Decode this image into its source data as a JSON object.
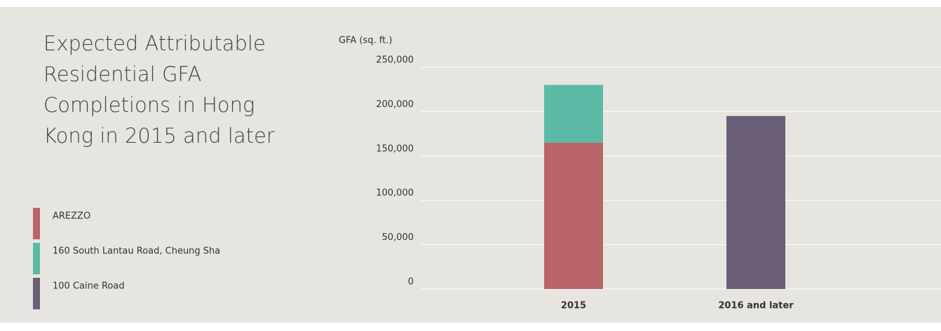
{
  "chart_data": {
    "type": "stacked_bar",
    "title": "Expected Attributable Residential GFA Completions in Hong Kong in 2015 and later",
    "y_label": "GFA (sq. ft.)",
    "categories": [
      "2015",
      "2016 and later"
    ],
    "series": [
      {
        "name": "AREZZO",
        "color": "#b9646a",
        "values": [
          165000,
          null
        ]
      },
      {
        "name": "160 South Lantau Road, Cheung Sha",
        "color": "#5bbaa6",
        "values": [
          65000,
          null
        ]
      },
      {
        "name": "100 Caine Road",
        "color": "#6b5e77",
        "values": [
          null,
          195000
        ]
      }
    ],
    "ylim": [
      0,
      250000
    ],
    "yticks": [
      0,
      {
        "value": 50000,
        "label": "50,000"
      },
      {
        "value": 100000,
        "label": "100,000"
      },
      {
        "value": 150000,
        "label": "150,000"
      },
      {
        "value": 200000,
        "label": "200,000"
      },
      {
        "value": 250000,
        "label": "250,000"
      }
    ],
    "grid": true
  }
}
